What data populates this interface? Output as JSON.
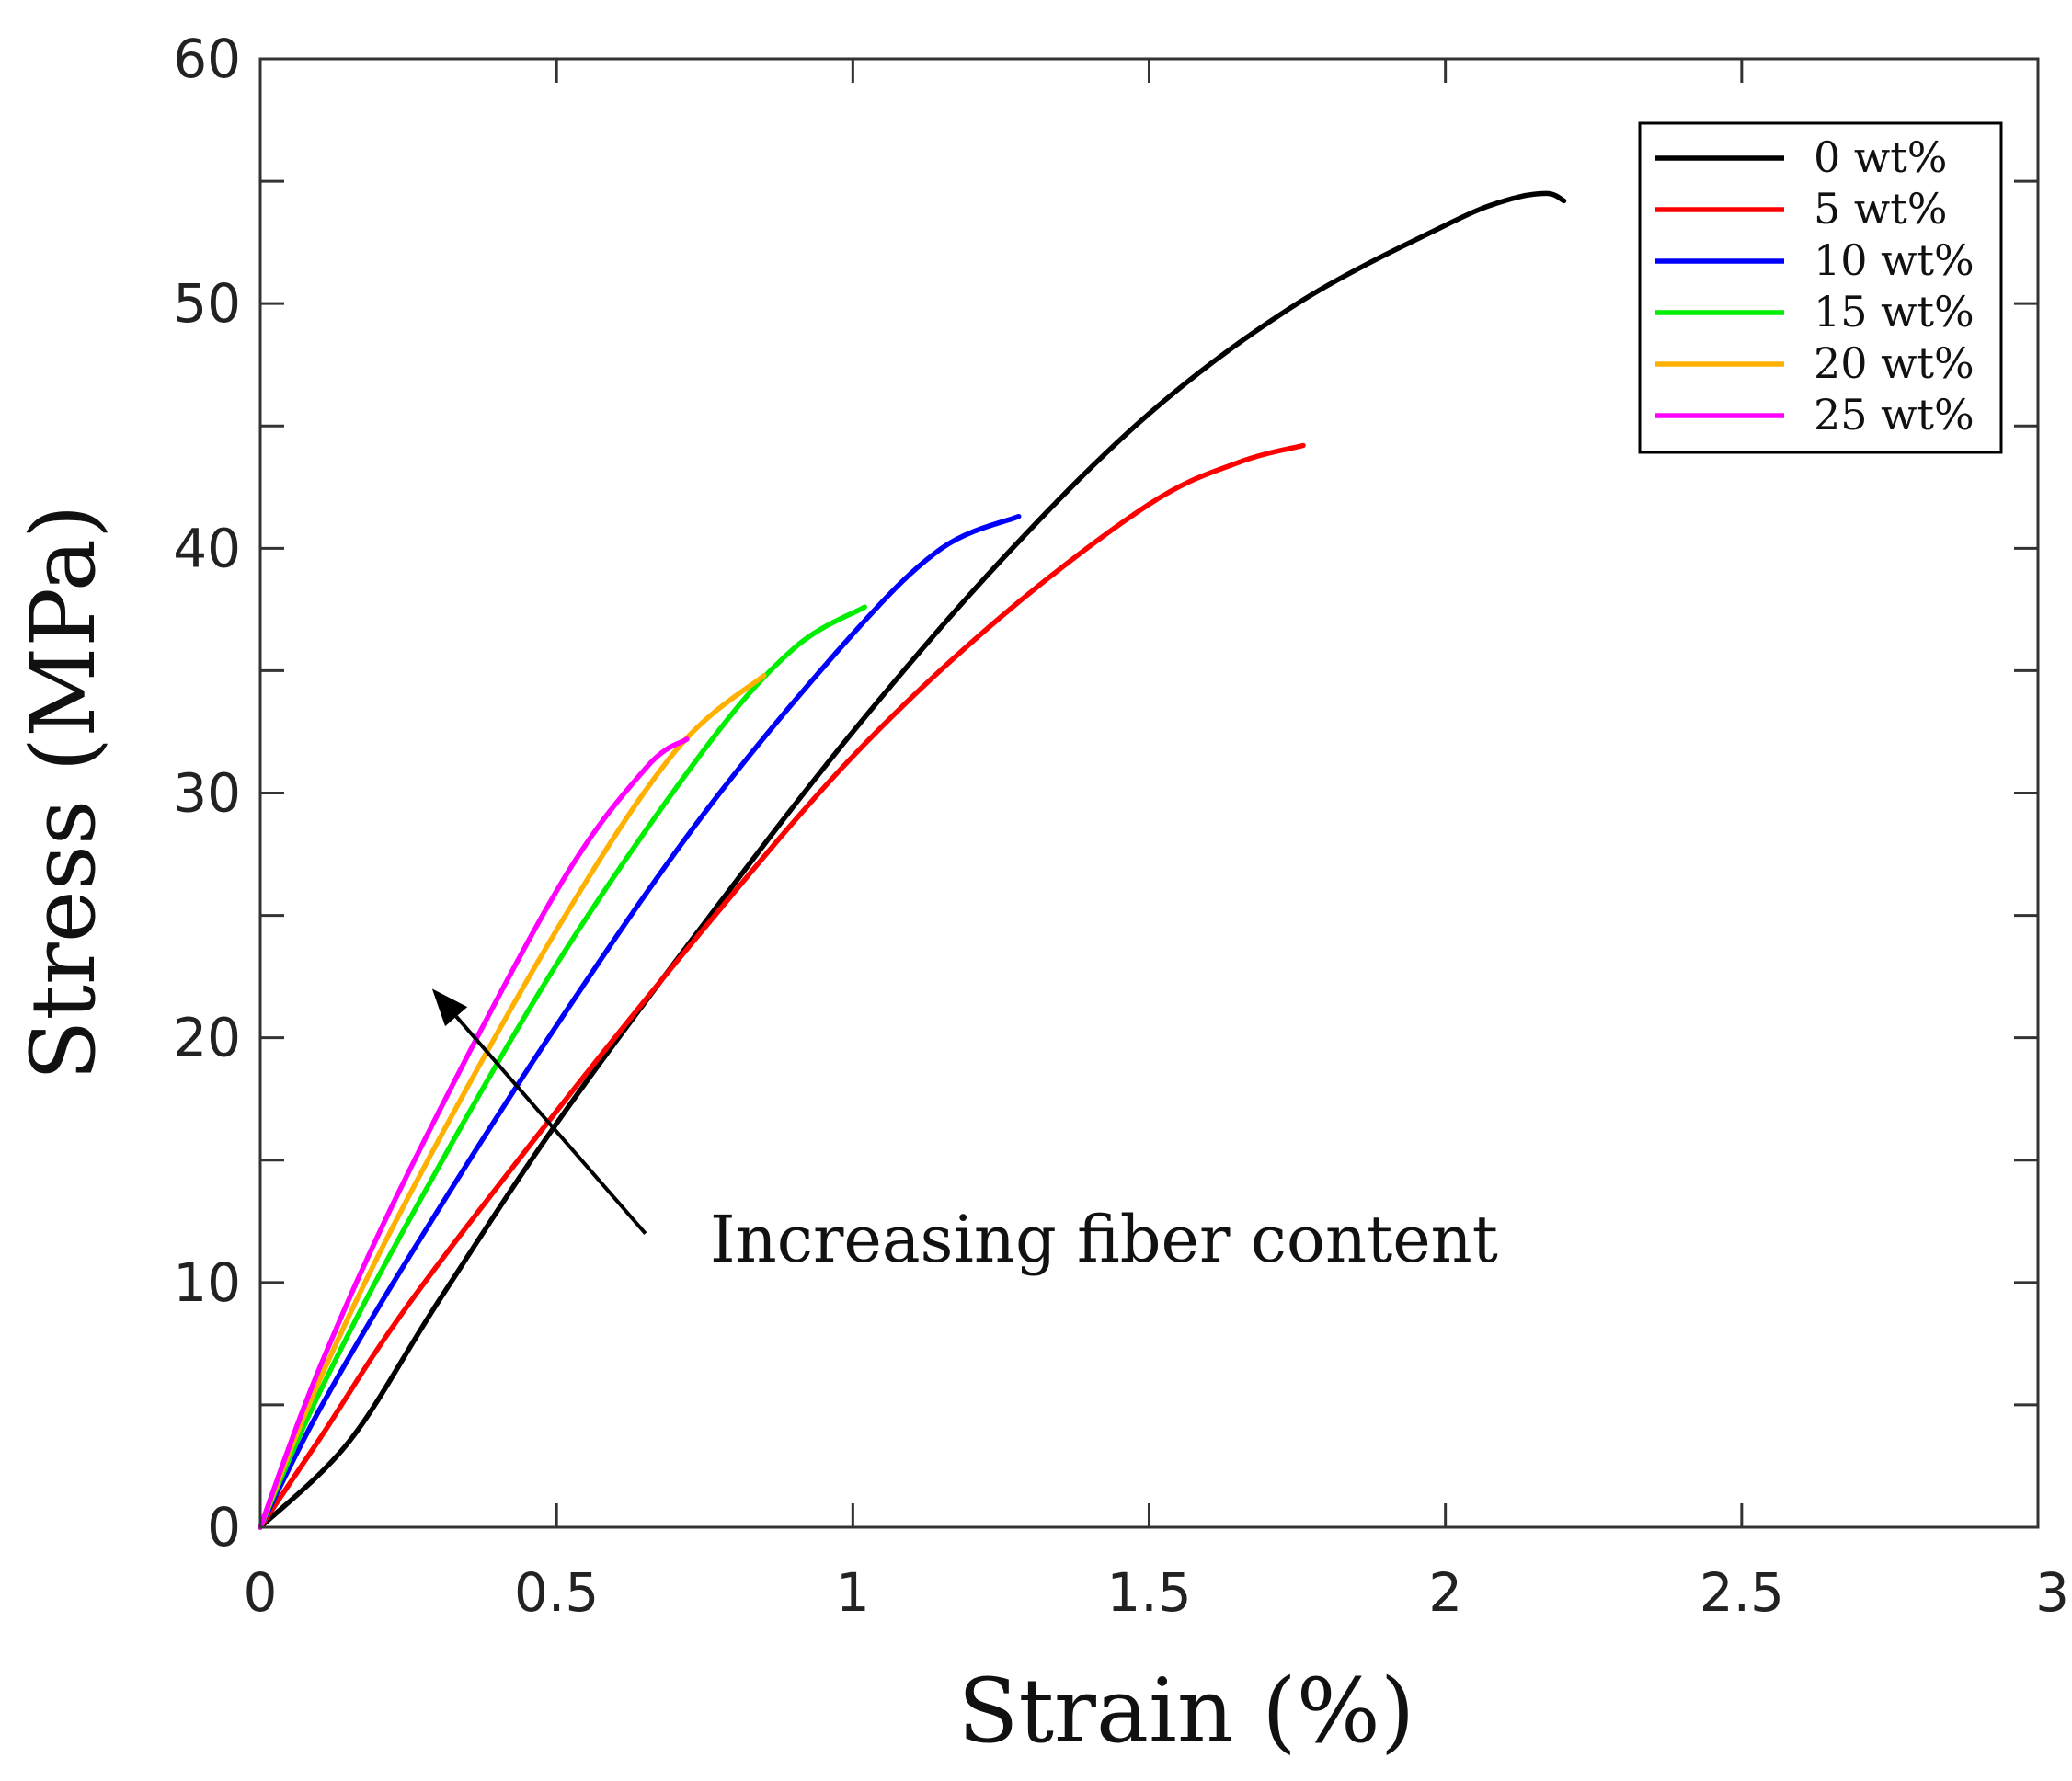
{
  "chart_data": {
    "type": "line",
    "title": "",
    "xlabel": "Strain (%)",
    "ylabel": "Stress (MPa)",
    "xlim": [
      0,
      3
    ],
    "ylim": [
      0,
      60
    ],
    "xticks": [
      0,
      0.5,
      1,
      1.5,
      2,
      2.5,
      3
    ],
    "xtick_labels": [
      "0",
      "0.5",
      "1",
      "1.5",
      "2",
      "2.5",
      "3"
    ],
    "yticks": [
      0,
      10,
      20,
      30,
      40,
      50,
      60
    ],
    "ytick_labels": [
      "0",
      "10",
      "20",
      "30",
      "40",
      "50",
      "60"
    ],
    "yminor_ticks": [
      5,
      15,
      25,
      35,
      45,
      55
    ],
    "grid": false,
    "legend_position": "top-right",
    "annotation": {
      "text": "Increasing fiber content",
      "arrow_from": [
        0.65,
        12
      ],
      "arrow_to": [
        0.29,
        22
      ]
    },
    "series": [
      {
        "name": "0 wt%",
        "color": "#000000",
        "points": [
          [
            0,
            0
          ],
          [
            0.15,
            3.5
          ],
          [
            0.3,
            9.2
          ],
          [
            0.5,
            16.5
          ],
          [
            0.75,
            24.7
          ],
          [
            1.0,
            32.5
          ],
          [
            1.25,
            39.5
          ],
          [
            1.5,
            45.5
          ],
          [
            1.75,
            50
          ],
          [
            2.0,
            53.2
          ],
          [
            2.1,
            54.2
          ],
          [
            2.17,
            54.5
          ],
          [
            2.2,
            54.2
          ]
        ]
      },
      {
        "name": "5 wt%",
        "color": "#ff0000",
        "points": [
          [
            0,
            0
          ],
          [
            0.1,
            3.6
          ],
          [
            0.25,
            9.1
          ],
          [
            0.5,
            17
          ],
          [
            0.75,
            24.5
          ],
          [
            1.0,
            31.5
          ],
          [
            1.25,
            37.2
          ],
          [
            1.5,
            41.8
          ],
          [
            1.65,
            43.5
          ],
          [
            1.76,
            44.2
          ]
        ]
      },
      {
        "name": "10 wt%",
        "color": "#0000ff",
        "points": [
          [
            0,
            0
          ],
          [
            0.1,
            4.8
          ],
          [
            0.25,
            11
          ],
          [
            0.5,
            20.5
          ],
          [
            0.75,
            29.2
          ],
          [
            1.0,
            36.5
          ],
          [
            1.15,
            40
          ],
          [
            1.28,
            41.3
          ]
        ]
      },
      {
        "name": "15 wt%",
        "color": "#00ee00",
        "points": [
          [
            0,
            0
          ],
          [
            0.1,
            5.5
          ],
          [
            0.25,
            12.5
          ],
          [
            0.5,
            23
          ],
          [
            0.75,
            31.8
          ],
          [
            0.9,
            35.9
          ],
          [
            1.02,
            37.6
          ]
        ]
      },
      {
        "name": "20 wt%",
        "color": "#ffb000",
        "points": [
          [
            0,
            0
          ],
          [
            0.1,
            6
          ],
          [
            0.25,
            13.5
          ],
          [
            0.5,
            24.4
          ],
          [
            0.7,
            31.7
          ],
          [
            0.85,
            34.8
          ]
        ]
      },
      {
        "name": "25 wt%",
        "color": "#ff00ff",
        "points": [
          [
            0,
            0
          ],
          [
            0.1,
            6.5
          ],
          [
            0.25,
            14.5
          ],
          [
            0.5,
            26
          ],
          [
            0.65,
            31
          ],
          [
            0.72,
            32.2
          ]
        ]
      }
    ]
  }
}
